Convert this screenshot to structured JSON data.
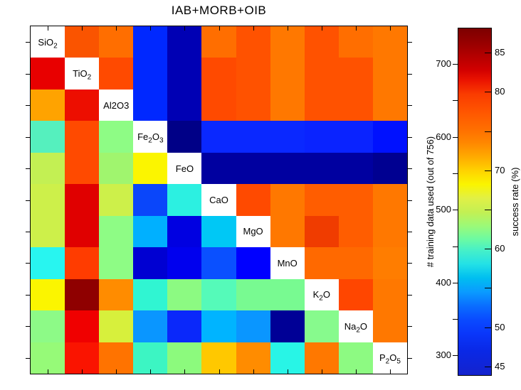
{
  "figure": {
    "title": "IAB+MORB+OIB",
    "background": "#ffffff"
  },
  "chart_data": {
    "type": "heatmap",
    "title": "IAB+MORB+OIB",
    "grid_size": 11,
    "oxides": [
      "SiO_2",
      "TiO_2",
      "Al2O3",
      "Fe_2O_3",
      "FeO",
      "CaO",
      "MgO",
      "MnO",
      "K_2O",
      "Na_2O",
      "P_2O_5"
    ],
    "diagonal_note": "diagonal cells are white and carry the oxide labels",
    "axes_note": "one unlabeled tick per row/column on all four sides",
    "cell_colors": [
      [
        null,
        "#fa5400",
        "#ff6e00",
        "#0028ff",
        "#0000b4",
        "#ff6e00",
        "#ff5200",
        "#ff7800",
        "#ff5200",
        "#ff6e00",
        "#ff7800"
      ],
      [
        "#e80000",
        null,
        "#ff4a00",
        "#0028ff",
        "#0000b4",
        "#ff4a00",
        "#ff5200",
        "#ff7800",
        "#ff5200",
        "#ff5200",
        "#ff7800"
      ],
      [
        "#ffa300",
        "#ed0e00",
        null,
        "#0028ff",
        "#0000b4",
        "#ff4a00",
        "#ff5200",
        "#ff7800",
        "#ff5200",
        "#ff5200",
        "#ff7800"
      ],
      [
        "#55f0be",
        "#ff4a00",
        "#8efc85",
        null,
        "#000087",
        "#0a28ff",
        "#0a28ff",
        "#0a28ff",
        "#0a23ff",
        "#0a23ff",
        "#0011ff"
      ],
      [
        "#c3f053",
        "#ff4a00",
        "#a0f56e",
        "#fbf500",
        null,
        "#0000a0",
        "#0000a0",
        "#0000a0",
        "#0000a0",
        "#0000a0",
        "#000091"
      ],
      [
        "#cdf04a",
        "#e00000",
        "#cdf04a",
        "#0a46fa",
        "#2cf0e1",
        null,
        "#ff4a00",
        "#ff7800",
        "#ff5d00",
        "#ff5d00",
        "#ff7800"
      ],
      [
        "#cdf04a",
        "#e00000",
        "#8efc85",
        "#00b0ff",
        "#0000e1",
        "#00c8f5",
        null,
        "#ff7800",
        "#f03c00",
        "#ff5d00",
        "#ff7800"
      ],
      [
        "#28f5f0",
        "#ff3c00",
        "#8efc85",
        "#0000d2",
        "#0000ee",
        "#0a50ff",
        "#0000ff",
        null,
        "#ff6900",
        "#ff6900",
        "#ff7d00"
      ],
      [
        "#fbf500",
        "#8f0000",
        "#ff8c00",
        "#30f5d2",
        "#8cfa82",
        "#55fab9",
        "#78fa91",
        "#78fa91",
        null,
        "#ff4600",
        "#ff7800"
      ],
      [
        "#8dfa87",
        "#f00000",
        "#d7f03c",
        "#0a96ff",
        "#0a28fa",
        "#00b4ff",
        "#0a96ff",
        "#000096",
        "#87fa8d",
        null,
        "#ff7800"
      ],
      [
        "#96fa78",
        "#fa1400",
        "#ff7300",
        "#3cf5c3",
        "#8cfa7d",
        "#ffc800",
        "#ff8c00",
        "#28f5e6",
        "#ff7800",
        "#8dfa82",
        null
      ]
    ],
    "success_rate_estimated": [
      [
        null,
        77,
        75,
        50,
        42,
        75,
        76.5,
        74.5,
        76.5,
        75,
        74.5
      ],
      [
        81,
        null,
        77,
        50,
        42,
        77,
        76.5,
        74.5,
        76.5,
        76.5,
        74.5
      ],
      [
        73.5,
        80.5,
        null,
        50,
        42,
        77,
        76.5,
        74.5,
        76.5,
        76.5,
        74.5
      ],
      [
        63.5,
        77,
        66,
        null,
        40.5,
        49.5,
        49.5,
        49.5,
        49.5,
        49.5,
        48
      ],
      [
        69,
        77,
        67,
        71.5,
        null,
        42,
        42,
        42,
        42,
        42,
        41.5
      ],
      [
        69.5,
        81,
        69.5,
        51,
        61.5,
        null,
        77,
        74.5,
        76,
        76,
        74.5
      ],
      [
        69.5,
        81,
        66,
        56.5,
        45.5,
        58,
        null,
        74.5,
        78,
        76,
        74.5
      ],
      [
        61.5,
        77.5,
        66,
        44.5,
        46,
        51.5,
        47,
        null,
        75,
        75,
        74.5
      ],
      [
        71.5,
        86.5,
        74,
        62,
        66,
        63.5,
        65.5,
        65.5,
        null,
        77,
        74.5
      ],
      [
        66,
        80.5,
        70,
        55,
        49.5,
        56.5,
        55,
        41.5,
        66,
        null,
        74.5
      ],
      [
        66.5,
        80,
        74.5,
        62.5,
        66.5,
        72.5,
        74,
        61,
        74.5,
        66,
        null
      ]
    ],
    "colorbar": {
      "left_axis": {
        "label": "# training data used (out of 756)",
        "min": 273,
        "max": 749,
        "tick_values": [
          300,
          350,
          400,
          450,
          500,
          550,
          600,
          650,
          700
        ],
        "labeled_values": [
          300,
          400,
          500,
          600,
          700
        ]
      },
      "right_axis": {
        "label": "success rate (%)",
        "min": 43.9,
        "max": 88.1,
        "tick_values": [
          45,
          50,
          55,
          60,
          65,
          70,
          75,
          80,
          85
        ],
        "labeled_values": [
          45,
          50,
          60,
          70,
          80,
          85
        ]
      },
      "gradient_stops": [
        [
          0,
          "#7c0000"
        ],
        [
          4,
          "#960000"
        ],
        [
          8,
          "#b40000"
        ],
        [
          12,
          "#d20000"
        ],
        [
          15,
          "#eb1400"
        ],
        [
          19,
          "#fa3c00"
        ],
        [
          24,
          "#ff5500"
        ],
        [
          29,
          "#ff6e00"
        ],
        [
          33,
          "#ff8700"
        ],
        [
          37,
          "#ffaa00"
        ],
        [
          41,
          "#ffd200"
        ],
        [
          45,
          "#faf500"
        ],
        [
          49,
          "#e1f046"
        ],
        [
          53,
          "#c3f053"
        ],
        [
          57,
          "#9bfa78"
        ],
        [
          61,
          "#69faa5"
        ],
        [
          64,
          "#46f0c8"
        ],
        [
          68,
          "#23e1e6"
        ],
        [
          72,
          "#00bef0"
        ],
        [
          76,
          "#0a9bff"
        ],
        [
          80,
          "#0a6eff"
        ],
        [
          84,
          "#0a4bff"
        ],
        [
          88,
          "#0a37fa"
        ],
        [
          93,
          "#0a28e6"
        ],
        [
          100,
          "#1423cd"
        ]
      ]
    }
  }
}
